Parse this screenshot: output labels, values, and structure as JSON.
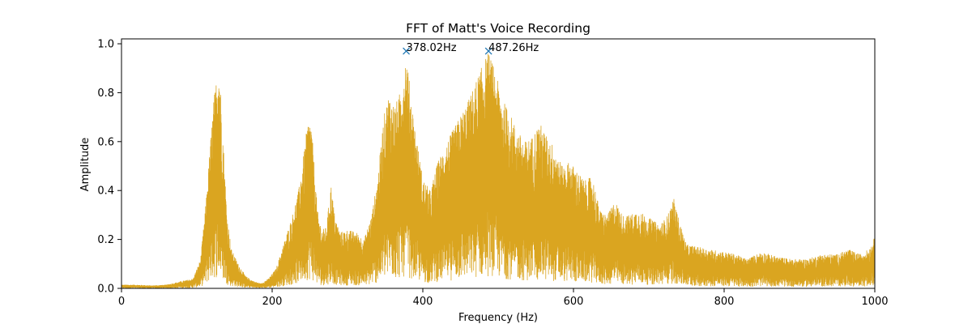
{
  "chart_data": {
    "type": "line",
    "title": "FFT of Matt's Voice Recording",
    "xlabel": "Frequency (Hz)",
    "ylabel": "Amplitude",
    "xlim": [
      0,
      1000
    ],
    "ylim": [
      0,
      1.02
    ],
    "xticks": [
      0,
      200,
      400,
      600,
      800,
      1000
    ],
    "yticks": [
      0.0,
      0.2,
      0.4,
      0.6,
      0.8,
      1.0
    ],
    "xtick_labels": [
      "0",
      "200",
      "400",
      "600",
      "800",
      "1000"
    ],
    "ytick_labels": [
      "0.0",
      "0.2",
      "0.4",
      "0.6",
      "0.8",
      "1.0"
    ],
    "grid": false,
    "series": [
      {
        "color": "#DAA520",
        "envelope": [
          [
            0,
            0.015
          ],
          [
            20,
            0.015
          ],
          [
            40,
            0.012
          ],
          [
            60,
            0.015
          ],
          [
            80,
            0.03
          ],
          [
            95,
            0.04
          ],
          [
            105,
            0.12
          ],
          [
            112,
            0.35
          ],
          [
            118,
            0.6
          ],
          [
            122,
            0.76
          ],
          [
            126,
            0.86
          ],
          [
            129,
            0.96
          ],
          [
            132,
            0.8
          ],
          [
            136,
            0.55
          ],
          [
            140,
            0.3
          ],
          [
            146,
            0.16
          ],
          [
            155,
            0.1
          ],
          [
            165,
            0.05
          ],
          [
            175,
            0.03
          ],
          [
            185,
            0.02
          ],
          [
            195,
            0.04
          ],
          [
            205,
            0.08
          ],
          [
            215,
            0.18
          ],
          [
            225,
            0.28
          ],
          [
            235,
            0.4
          ],
          [
            242,
            0.55
          ],
          [
            247,
            0.68
          ],
          [
            251,
            0.7
          ],
          [
            255,
            0.55
          ],
          [
            260,
            0.32
          ],
          [
            266,
            0.24
          ],
          [
            272,
            0.25
          ],
          [
            278,
            0.43
          ],
          [
            283,
            0.3
          ],
          [
            290,
            0.23
          ],
          [
            300,
            0.24
          ],
          [
            312,
            0.23
          ],
          [
            322,
            0.2
          ],
          [
            332,
            0.3
          ],
          [
            340,
            0.45
          ],
          [
            348,
            0.7
          ],
          [
            355,
            0.8
          ],
          [
            362,
            0.75
          ],
          [
            368,
            0.78
          ],
          [
            374,
            0.88
          ],
          [
            378,
            0.97
          ],
          [
            382,
            0.85
          ],
          [
            390,
            0.65
          ],
          [
            400,
            0.45
          ],
          [
            410,
            0.4
          ],
          [
            420,
            0.52
          ],
          [
            432,
            0.6
          ],
          [
            442,
            0.66
          ],
          [
            452,
            0.72
          ],
          [
            462,
            0.78
          ],
          [
            472,
            0.86
          ],
          [
            480,
            0.92
          ],
          [
            487,
            0.97
          ],
          [
            495,
            0.9
          ],
          [
            505,
            0.78
          ],
          [
            515,
            0.72
          ],
          [
            525,
            0.65
          ],
          [
            535,
            0.6
          ],
          [
            545,
            0.62
          ],
          [
            555,
            0.68
          ],
          [
            565,
            0.62
          ],
          [
            575,
            0.58
          ],
          [
            585,
            0.5
          ],
          [
            595,
            0.52
          ],
          [
            605,
            0.48
          ],
          [
            615,
            0.44
          ],
          [
            625,
            0.46
          ],
          [
            635,
            0.32
          ],
          [
            645,
            0.3
          ],
          [
            655,
            0.36
          ],
          [
            665,
            0.3
          ],
          [
            675,
            0.3
          ],
          [
            685,
            0.32
          ],
          [
            695,
            0.3
          ],
          [
            705,
            0.28
          ],
          [
            715,
            0.26
          ],
          [
            725,
            0.3
          ],
          [
            733,
            0.37
          ],
          [
            740,
            0.28
          ],
          [
            750,
            0.18
          ],
          [
            765,
            0.17
          ],
          [
            780,
            0.16
          ],
          [
            800,
            0.15
          ],
          [
            815,
            0.14
          ],
          [
            830,
            0.12
          ],
          [
            850,
            0.15
          ],
          [
            870,
            0.13
          ],
          [
            890,
            0.12
          ],
          [
            910,
            0.12
          ],
          [
            930,
            0.14
          ],
          [
            950,
            0.14
          ],
          [
            965,
            0.16
          ],
          [
            980,
            0.14
          ],
          [
            992,
            0.16
          ],
          [
            1000,
            0.21
          ]
        ]
      }
    ],
    "peaks": [
      {
        "x": 378.02,
        "y": 0.97,
        "label": "378.02Hz"
      },
      {
        "x": 487.26,
        "y": 0.97,
        "label": "487.26Hz"
      }
    ],
    "marker_color": "#1f77b4"
  }
}
